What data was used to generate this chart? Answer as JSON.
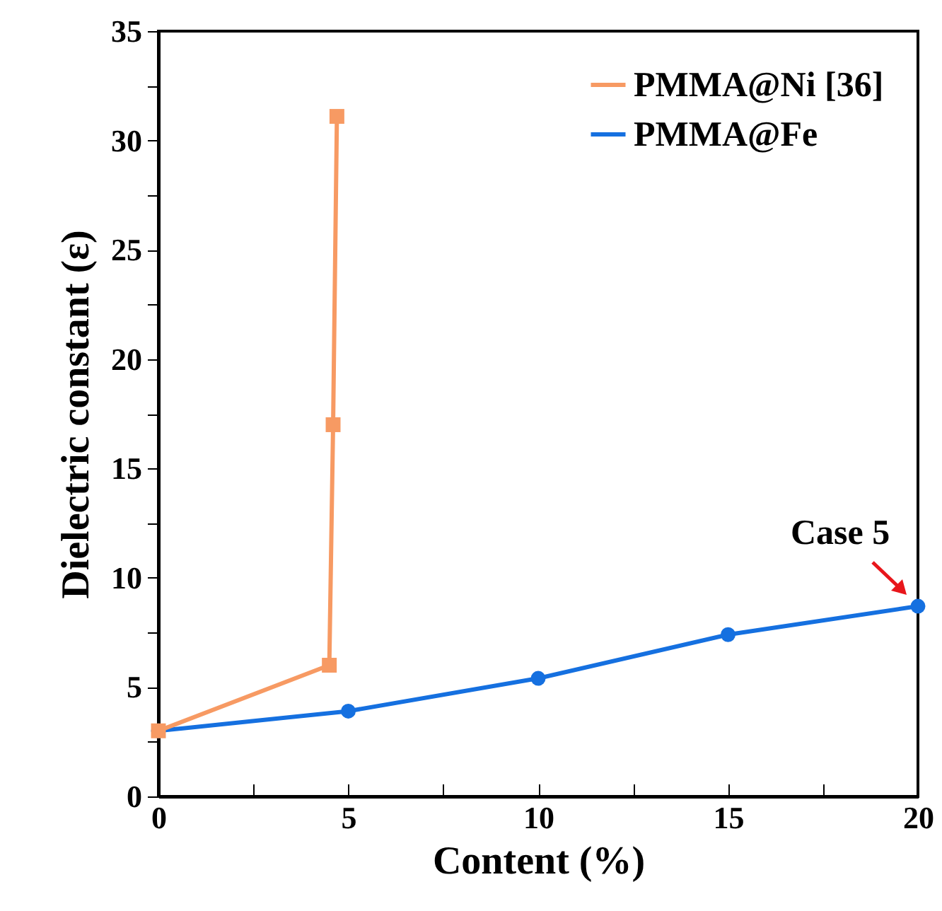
{
  "chart_data": {
    "type": "line",
    "xlabel": "Content (%)",
    "ylabel": "Dielectric constant (ε)",
    "xlim": [
      0,
      20
    ],
    "ylim": [
      0,
      35
    ],
    "xticks": [
      0,
      {
        "value": 2.5,
        "label": null
      },
      5,
      {
        "value": 7.5,
        "label": null
      },
      10,
      {
        "value": 12.5,
        "label": null
      },
      15,
      {
        "value": 17.5,
        "label": null
      },
      20
    ],
    "yticks": [
      0,
      {
        "value": 2.5,
        "label": null
      },
      5,
      {
        "value": 7.5,
        "label": null
      },
      10,
      {
        "value": 12.5,
        "label": null
      },
      15,
      {
        "value": 17.5,
        "label": null
      },
      20,
      {
        "value": 22.5,
        "label": null
      },
      25,
      {
        "value": 27.5,
        "label": null
      },
      30,
      {
        "value": 32.5,
        "label": null
      },
      35
    ],
    "grid": false,
    "legend": "top right",
    "line_style": "solid",
    "series": [
      {
        "name": "PMMA@Ni [36]",
        "color": "#f79a63",
        "marker": "square",
        "x": [
          0,
          4.5,
          4.6,
          4.7
        ],
        "values": [
          3.0,
          6.0,
          17.0,
          31.1
        ]
      },
      {
        "name": "PMMA@Fe",
        "color": "#1570e0",
        "marker": "circle",
        "x": [
          0,
          5,
          10,
          15,
          20
        ],
        "values": [
          3.0,
          3.9,
          5.4,
          7.4,
          8.7
        ]
      }
    ],
    "annotations": [
      {
        "text": "Case 5",
        "x": 20,
        "y": 8.7
      }
    ]
  }
}
